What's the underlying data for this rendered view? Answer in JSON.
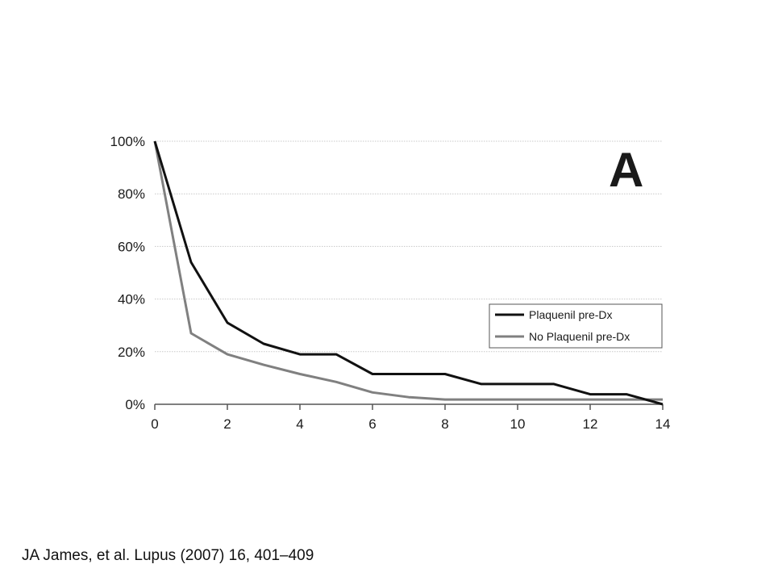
{
  "citation": "JA James, et al. Lupus (2007) 16, 401–409",
  "chart_data": {
    "type": "line",
    "panel_label": "A",
    "title": "",
    "xlabel": "",
    "ylabel": "",
    "xlim": [
      0,
      14
    ],
    "ylim": [
      0,
      100
    ],
    "x_ticks": [
      0,
      2,
      4,
      6,
      8,
      10,
      12,
      14
    ],
    "y_ticks": [
      0,
      20,
      40,
      60,
      80,
      100
    ],
    "y_tick_labels": [
      "0%",
      "20%",
      "40%",
      "60%",
      "80%",
      "100%"
    ],
    "grid": true,
    "legend_position": "right",
    "x": [
      0,
      1,
      2,
      3,
      4,
      5,
      6,
      7,
      8,
      9,
      10,
      11,
      12,
      13,
      14
    ],
    "series": [
      {
        "name": "Plaquenil pre-Dx",
        "color": "#111111",
        "values": [
          100,
          54,
          31,
          23,
          19,
          19,
          11.5,
          11.5,
          11.5,
          7.7,
          7.7,
          7.7,
          3.8,
          3.8,
          0
        ]
      },
      {
        "name": "No Plaquenil pre-Dx",
        "color": "#808080",
        "values": [
          100,
          27,
          19,
          15,
          11.5,
          8.5,
          4.5,
          2.7,
          1.8,
          1.8,
          1.8,
          1.8,
          1.8,
          1.8,
          1.8
        ]
      }
    ]
  }
}
